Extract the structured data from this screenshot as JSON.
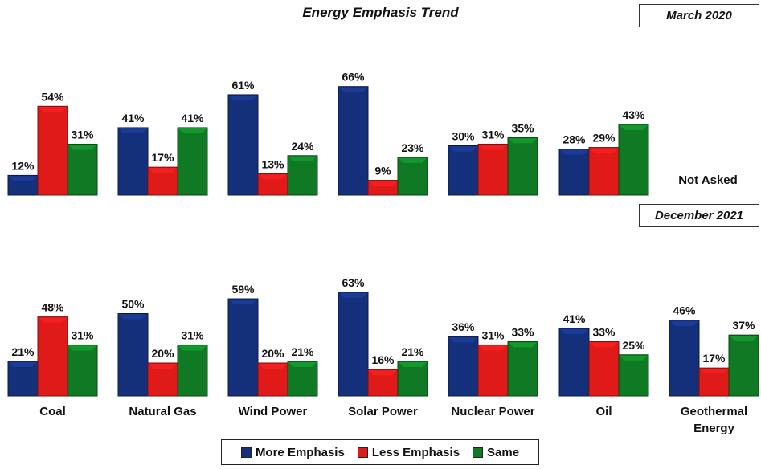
{
  "title": "Energy Emphasis Trend",
  "colors": {
    "more_emphasis": "#15307a",
    "less_emphasis": "#e01919",
    "same": "#0f7a23"
  },
  "chart_data": [
    {
      "type": "bar",
      "panel_label": "March 2020",
      "categories": [
        "Coal",
        "Natural Gas",
        "Wind Power",
        "Solar Power",
        "Nuclear Power",
        "Oil",
        "Geothermal Energy"
      ],
      "series": [
        {
          "name": "More Emphasis",
          "values": [
            12,
            41,
            61,
            66,
            30,
            28,
            null
          ]
        },
        {
          "name": "Less Emphasis",
          "values": [
            54,
            17,
            13,
            9,
            31,
            29,
            null
          ]
        },
        {
          "name": "Same",
          "values": [
            31,
            41,
            24,
            23,
            35,
            43,
            null
          ]
        }
      ],
      "note": "Not Asked",
      "value_format": "percent"
    },
    {
      "type": "bar",
      "panel_label": "December 2021",
      "categories": [
        "Coal",
        "Natural Gas",
        "Wind Power",
        "Solar Power",
        "Nuclear Power",
        "Oil",
        "Geothermal Energy"
      ],
      "series": [
        {
          "name": "More Emphasis",
          "values": [
            21,
            50,
            59,
            63,
            36,
            41,
            46
          ]
        },
        {
          "name": "Less Emphasis",
          "values": [
            48,
            20,
            20,
            16,
            31,
            33,
            17
          ]
        },
        {
          "name": "Same",
          "values": [
            31,
            31,
            21,
            21,
            33,
            25,
            37
          ]
        }
      ],
      "value_format": "percent"
    }
  ],
  "category_labels": [
    "Coal",
    "Natural Gas",
    "Wind Power",
    "Solar Power",
    "Nuclear Power",
    "Oil",
    "Geothermal\nEnergy"
  ],
  "legend": [
    "More Emphasis",
    "Less Emphasis",
    "Same"
  ]
}
